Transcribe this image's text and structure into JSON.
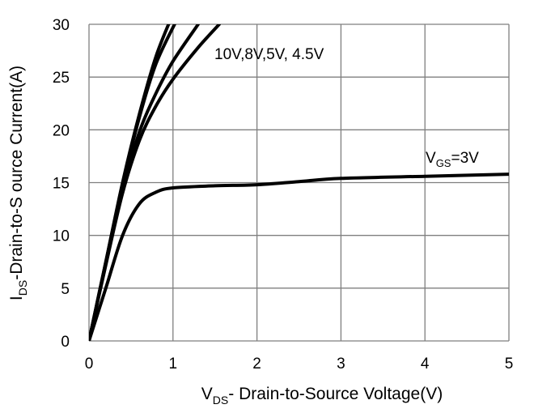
{
  "chart_data": {
    "type": "line",
    "title": "",
    "xlabel": {
      "prefix": "V",
      "sub": "DS",
      "rest": "- Drain-to-Source Voltage(V)"
    },
    "ylabel": {
      "prefix": "I",
      "sub": "DS",
      "rest": "-Drain-to-S ource Current(A)"
    },
    "xlim": [
      0,
      5
    ],
    "ylim": [
      0,
      30
    ],
    "xticks": [
      "0",
      "1",
      "2",
      "3",
      "4",
      "5"
    ],
    "yticks": [
      "0",
      "5",
      "10",
      "15",
      "20",
      "25",
      "30"
    ],
    "grid": true,
    "annotations": {
      "high_vgs": "10V,8V,5V, 4.5V",
      "low_vgs": {
        "prefix": "V",
        "sub": "GS",
        "rest": "=3V"
      }
    },
    "series": [
      {
        "name": "10V",
        "x": [
          0,
          0.2,
          0.4,
          0.6,
          0.8,
          1.0
        ],
        "y": [
          0,
          7.5,
          15,
          21.5,
          27,
          31
        ]
      },
      {
        "name": "8V",
        "x": [
          0,
          0.2,
          0.4,
          0.6,
          0.8,
          1.05
        ],
        "y": [
          0,
          7.5,
          14.8,
          21.2,
          26.3,
          30.5
        ]
      },
      {
        "name": "5V",
        "x": [
          0,
          0.2,
          0.4,
          0.6,
          0.8,
          1.0,
          1.3
        ],
        "y": [
          0,
          7.3,
          14.2,
          19.8,
          23.5,
          26.5,
          30
        ]
      },
      {
        "name": "4.5V",
        "x": [
          0,
          0.2,
          0.4,
          0.6,
          0.8,
          1.0,
          1.3,
          1.55
        ],
        "y": [
          0,
          7.2,
          14,
          19,
          22.3,
          24.8,
          27.8,
          30
        ]
      },
      {
        "name": "3V",
        "x": [
          0,
          0.2,
          0.4,
          0.6,
          0.8,
          1.0,
          1.5,
          2.0,
          2.5,
          3.0,
          4.0,
          5.0
        ],
        "y": [
          0,
          5,
          10,
          13,
          14.1,
          14.5,
          14.7,
          14.8,
          15.1,
          15.4,
          15.6,
          15.8
        ]
      }
    ]
  }
}
